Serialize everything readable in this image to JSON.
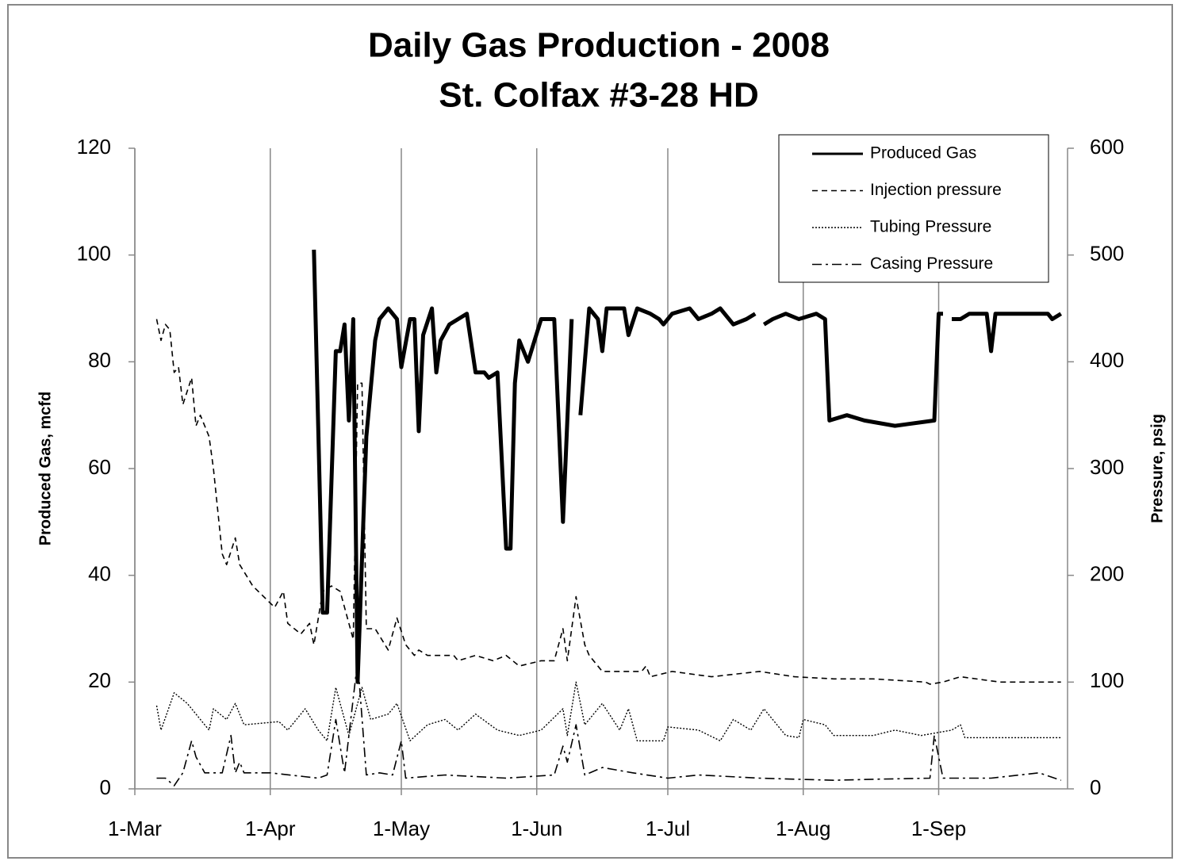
{
  "chart_data": {
    "type": "line",
    "title": "Daily Gas Production - 2008",
    "subtitle": "St. Colfax #3-28 HD",
    "y_label": "Produced Gas,  mcfd",
    "y2_label": "Pressure, psig",
    "xlim": [
      0,
      213.5
    ],
    "xticks": [
      {
        "value": 0,
        "label": "1-Mar"
      },
      {
        "value": 31,
        "label": "1-Apr"
      },
      {
        "value": 61,
        "label": "1-May"
      },
      {
        "value": 92,
        "label": "1-Jun"
      },
      {
        "value": 122,
        "label": "1-Jul"
      },
      {
        "value": 153,
        "label": "1-Aug"
      },
      {
        "value": 184,
        "label": "1-Sep"
      }
    ],
    "ylim": [
      0,
      120
    ],
    "yticks": [
      0,
      20,
      40,
      60,
      80,
      100,
      120
    ],
    "y2lim": [
      0,
      600
    ],
    "y2ticks": [
      0,
      100,
      200,
      300,
      400,
      500,
      600
    ],
    "x_grid": true,
    "legend": "top-right",
    "series": [
      {
        "name": "Produced Gas",
        "color": "#000000",
        "line_style": "solid",
        "line_width": 5,
        "x": [
          41,
          43,
          44,
          46,
          47,
          48,
          49,
          50,
          51,
          53,
          55,
          56,
          58,
          60,
          61,
          63,
          64,
          65,
          66,
          68,
          69,
          70,
          72,
          74,
          76,
          78,
          80,
          81,
          83,
          85,
          86,
          87,
          88,
          90,
          93,
          96,
          98,
          100,
          101,
          102,
          104,
          106,
          107,
          108,
          112,
          113,
          115,
          118,
          120,
          121,
          123,
          127,
          129,
          132,
          134,
          137,
          140,
          142,
          143,
          144,
          146,
          149,
          152,
          156,
          158,
          159,
          163,
          167,
          174,
          183,
          184,
          185,
          186,
          187,
          189,
          191,
          195,
          196,
          197,
          209,
          210,
          212
        ],
        "values": [
          101,
          33,
          33,
          82,
          82,
          87,
          69,
          88,
          20,
          66,
          84,
          88,
          90,
          88,
          79,
          88,
          88,
          67,
          85,
          90,
          78,
          84,
          87,
          88,
          89,
          78,
          78,
          77,
          78,
          45,
          45,
          76,
          84,
          80,
          88,
          88,
          50,
          88,
          null,
          70,
          90,
          88,
          82,
          90,
          90,
          85,
          90,
          89,
          88,
          87,
          89,
          90,
          88,
          89,
          90,
          87,
          88,
          89,
          null,
          87,
          88,
          89,
          88,
          89,
          88,
          69,
          70,
          69,
          68,
          69,
          89,
          89,
          null,
          88,
          88,
          89,
          89,
          82,
          89,
          89,
          88,
          89
        ]
      },
      {
        "name": "Injection pressure",
        "color": "#000000",
        "line_style": "dashed",
        "line_width": 1.6,
        "axis": "y2",
        "x": [
          5,
          6,
          7,
          8,
          9,
          10,
          11,
          13,
          14,
          15,
          17,
          18,
          20,
          21,
          23,
          24,
          27,
          32,
          34,
          35,
          38,
          40,
          41,
          43,
          45,
          47,
          50,
          51,
          52,
          53,
          55,
          58,
          60,
          62,
          64,
          65,
          67,
          73,
          74,
          78,
          82,
          85,
          88,
          93,
          96,
          98,
          99,
          101,
          103,
          104,
          107,
          113,
          116,
          117,
          118,
          123,
          132,
          143,
          151,
          160,
          169,
          181,
          182,
          185,
          189,
          198,
          212
        ],
        "values": [
          440,
          420,
          435,
          430,
          390,
          395,
          360,
          385,
          340,
          350,
          330,
          300,
          220,
          210,
          235,
          210,
          190,
          170,
          185,
          155,
          145,
          155,
          135,
          185,
          190,
          185,
          140,
          380,
          380,
          150,
          150,
          130,
          160,
          135,
          125,
          130,
          125,
          125,
          120,
          125,
          120,
          125,
          115,
          120,
          120,
          150,
          120,
          180,
          135,
          125,
          110,
          110,
          110,
          115,
          105,
          110,
          105,
          110,
          105,
          103,
          103,
          100,
          98,
          100,
          105,
          100,
          100
        ]
      },
      {
        "name": "Tubing Pressure",
        "color": "#000000",
        "line_style": "dotted",
        "line_width": 1.4,
        "axis": "y2",
        "x": [
          5,
          6,
          9,
          12,
          14,
          17,
          18,
          21,
          23,
          25,
          33,
          35,
          39,
          42,
          44,
          46,
          49,
          52,
          54,
          58,
          60,
          63,
          67,
          71,
          74,
          78,
          83,
          88,
          93,
          98,
          99,
          101,
          103,
          107,
          111,
          113,
          115,
          121,
          122,
          129,
          134,
          137,
          141,
          144,
          149,
          152,
          153,
          158,
          160,
          169,
          174,
          180,
          187,
          189,
          190,
          212
        ],
        "values": [
          78,
          55,
          90,
          80,
          70,
          55,
          75,
          65,
          80,
          60,
          63,
          55,
          75,
          55,
          45,
          95,
          50,
          95,
          65,
          70,
          80,
          45,
          60,
          65,
          55,
          70,
          55,
          50,
          55,
          75,
          50,
          100,
          60,
          80,
          55,
          75,
          45,
          45,
          58,
          55,
          45,
          65,
          55,
          75,
          50,
          48,
          65,
          60,
          50,
          50,
          55,
          50,
          55,
          60,
          48,
          48
        ]
      },
      {
        "name": "Casing Pressure",
        "color": "#000000",
        "line_style": "dashdot",
        "line_width": 1.6,
        "axis": "y2",
        "x": [
          5,
          7,
          9,
          11,
          13,
          14,
          16,
          20,
          22,
          23,
          24,
          25,
          31,
          42,
          44,
          46,
          48,
          51,
          53,
          56,
          59,
          61,
          62,
          71,
          85,
          96,
          98,
          99,
          101,
          103,
          107,
          114,
          122,
          129,
          143,
          160,
          169,
          182,
          183,
          185,
          196,
          207,
          212
        ],
        "values": [
          10,
          10,
          3,
          15,
          45,
          30,
          15,
          15,
          50,
          15,
          25,
          15,
          15,
          10,
          13,
          65,
          15,
          120,
          13,
          15,
          13,
          45,
          10,
          13,
          10,
          13,
          40,
          25,
          60,
          13,
          20,
          15,
          10,
          13,
          10,
          8,
          9,
          10,
          50,
          10,
          10,
          15,
          8
        ]
      }
    ]
  }
}
